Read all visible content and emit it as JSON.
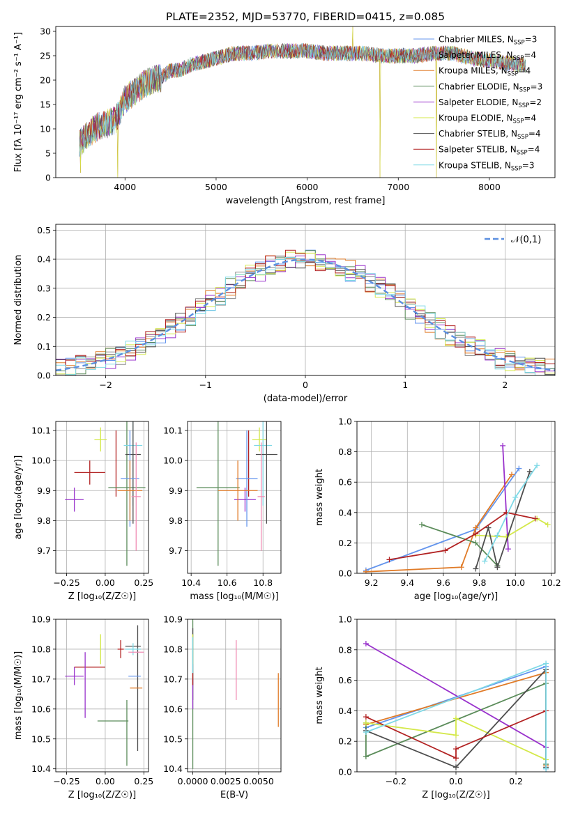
{
  "figure_title": "PLATE=2352, MJD=53770, FIBERID=0415, z=0.085",
  "models": [
    {
      "name": "Chabrier MILES",
      "nssp": "3",
      "color": "#6495ED"
    },
    {
      "name": "Salpeter MILES",
      "nssp": "4",
      "color": "#8C8C8C"
    },
    {
      "name": "Kroupa MILES",
      "nssp": "4",
      "color": "#E07B28"
    },
    {
      "name": "Chabrier ELODIE",
      "nssp": "3",
      "color": "#5B8C5A"
    },
    {
      "name": "Salpeter ELODIE",
      "nssp": "2",
      "color": "#9932CC"
    },
    {
      "name": "Kroupa ELODIE",
      "nssp": "4",
      "color": "#D4E84A"
    },
    {
      "name": "Chabrier STELIB",
      "nssp": "4",
      "color": "#4D4D4D"
    },
    {
      "name": "Salpeter STELIB",
      "nssp": "4",
      "color": "#B22222"
    },
    {
      "name": "Kroupa STELIB",
      "nssp": "3",
      "color": "#7FD9E6"
    }
  ],
  "pink_color": "#F08CB4",
  "chart_data": [
    {
      "type": "line",
      "id": "spectrum",
      "xlabel": "wavelength [Angstrom, rest frame]",
      "ylabel": "Flux [fλ 10⁻¹⁷ erg cm⁻² s⁻¹ A⁻¹]",
      "xlim": [
        3240,
        8720
      ],
      "ylim": [
        0,
        31
      ],
      "xticks": [
        4000,
        5000,
        6000,
        7000,
        8000
      ],
      "yticks": [
        0,
        5,
        10,
        15,
        20,
        25,
        30
      ],
      "grid": false,
      "legend_position": "upper-right",
      "continuum": {
        "x": [
          3500,
          3600,
          3700,
          3800,
          3900,
          4000,
          4100,
          4200,
          4300,
          4400,
          4500,
          4600,
          4700,
          4800,
          4900,
          5000,
          5200,
          5400,
          5600,
          5800,
          6000,
          6200,
          6400,
          6600,
          6800,
          7000,
          7200,
          7400,
          7600,
          7800,
          8000,
          8200,
          8400
        ],
        "y": [
          7,
          9,
          10.5,
          11,
          12,
          16,
          17.5,
          19,
          20,
          20.5,
          22,
          22,
          23,
          23.5,
          24,
          24.5,
          25.5,
          25.5,
          26,
          26,
          26,
          25.5,
          25.5,
          25.5,
          25,
          25,
          25,
          25.5,
          25.5,
          24.5,
          24,
          23.5,
          23
        ]
      },
      "spikes": [
        {
          "x": 3510,
          "y": 1
        },
        {
          "x": 3920,
          "y": 0
        },
        {
          "x": 6500,
          "y": 31
        },
        {
          "x": 6800,
          "y": 0
        },
        {
          "x": 7420,
          "y": 0
        }
      ]
    },
    {
      "type": "line",
      "id": "residual-histogram",
      "xlabel": "(data-model)/error",
      "ylabel": "Normed distribution",
      "xlim": [
        -2.5,
        2.5
      ],
      "ylim": [
        0,
        0.52
      ],
      "xticks": [
        -2,
        -1,
        0,
        1,
        2
      ],
      "xtick_labels": [
        "−2",
        "−1",
        "0",
        "1",
        "2"
      ],
      "yticks": [
        0,
        0.1,
        0.2,
        0.3,
        0.4,
        0.5
      ],
      "ytick_labels": [
        "0.0",
        "0.1",
        "0.2",
        "0.3",
        "0.4",
        "0.5"
      ],
      "grid": true,
      "legend_position": "upper-right",
      "reference_label": "𝒩(0,1)",
      "bin_width": 0.1
    },
    {
      "type": "scatter",
      "id": "age-vs-metallicity",
      "xlabel": "Z [log₁₀(Z/Z☉)]",
      "ylabel": "age  [log₁₀(age/yr)]",
      "xlim": [
        -0.32,
        0.28
      ],
      "ylim": [
        9.625,
        10.13
      ],
      "xticks": [
        -0.25,
        0,
        0.25
      ],
      "xtick_labels": [
        "−0.25",
        "0.00",
        "0.25"
      ],
      "yticks": [
        9.7,
        9.8,
        9.9,
        10.0,
        10.1
      ],
      "ytick_labels": [
        "9.7",
        "9.8",
        "9.9",
        "10.0",
        "10.1"
      ],
      "grid": true,
      "points": [
        {
          "model": "Kroupa ELODIE",
          "x": -0.03,
          "y": 10.07,
          "xerr": 0.04,
          "yerr": 0.04
        },
        {
          "model": "Salpeter STELIB",
          "x": -0.1,
          "y": 9.96,
          "xerr": 0.1,
          "yerr": 0.04
        },
        {
          "model": "Salpeter STELIB (2)",
          "x": 0.07,
          "y": 9.99,
          "xerr": 0,
          "yerr": 0.11
        },
        {
          "model": "Salpeter ELODIE",
          "x": -0.2,
          "y": 9.87,
          "xerr": 0.06,
          "yerr": 0.04
        },
        {
          "model": "Chabrier ELODIE",
          "x": 0.14,
          "y": 9.91,
          "xerr": 0.12,
          "yerr": 0.26
        },
        {
          "model": "Kroupa STELIB",
          "x": 0.18,
          "y": 10.05,
          "xerr": 0.06,
          "yerr": 0.2
        },
        {
          "model": "Chabrier STELIB",
          "x": 0.18,
          "y": 10.02,
          "xerr": 0.05,
          "yerr": 0.23
        },
        {
          "model": "Chabrier MILES",
          "x": 0.16,
          "y": 9.94,
          "xerr": 0.06,
          "yerr": 0.16
        },
        {
          "model": "Kroupa MILES",
          "x": 0.16,
          "y": 9.9,
          "xerr": 0.08,
          "yerr": 0.1
        },
        {
          "model": "pink",
          "x": 0.2,
          "y": 9.88,
          "xerr": 0.03,
          "yerr": 0.18
        }
      ]
    },
    {
      "type": "scatter",
      "id": "age-vs-mass",
      "xlabel": "mass [log₁₀(M/M☉)]",
      "ylabel": "",
      "xlim": [
        10.38,
        10.9
      ],
      "ylim": [
        9.625,
        10.13
      ],
      "xticks": [
        10.4,
        10.6,
        10.8
      ],
      "xtick_labels": [
        "10.4",
        "10.6",
        "10.8"
      ],
      "yticks": [
        9.7,
        9.8,
        9.9,
        10.0,
        10.1
      ],
      "ytick_labels": [
        "9.7",
        "9.8",
        "9.9",
        "10.0",
        "10.1"
      ],
      "grid": true,
      "points": [
        {
          "model": "Kroupa ELODIE",
          "x": 10.78,
          "y": 10.07,
          "xerr": 0.04,
          "yerr": 0.04
        },
        {
          "model": "Salpeter STELIB",
          "x": 10.72,
          "y": 9.99,
          "xerr": 0,
          "yerr": 0.11
        },
        {
          "model": "Salpeter ELODIE",
          "x": 10.7,
          "y": 9.87,
          "xerr": 0.06,
          "yerr": 0.04
        },
        {
          "model": "Chabrier ELODIE",
          "x": 10.55,
          "y": 9.91,
          "xerr": 0.12,
          "yerr": 0.26
        },
        {
          "model": "Kroupa STELIB",
          "x": 10.8,
          "y": 10.05,
          "xerr": 0.05,
          "yerr": 0.2
        },
        {
          "model": "Chabrier STELIB",
          "x": 10.82,
          "y": 10.02,
          "xerr": 0.06,
          "yerr": 0.23
        },
        {
          "model": "Chabrier MILES",
          "x": 10.71,
          "y": 9.94,
          "xerr": 0.06,
          "yerr": 0.16
        },
        {
          "model": "Kroupa MILES",
          "x": 10.66,
          "y": 9.9,
          "xerr": 0.11,
          "yerr": 0.1
        },
        {
          "model": "pink",
          "x": 10.79,
          "y": 9.88,
          "xerr": 0.02,
          "yerr": 0.18
        }
      ]
    },
    {
      "type": "line",
      "id": "mass-weight-vs-age",
      "xlabel": "age  [log₁₀(age/yr)]",
      "ylabel": "mass weight",
      "xlim": [
        9.12,
        10.22
      ],
      "ylim": [
        0,
        1
      ],
      "xticks": [
        9.2,
        9.4,
        9.6,
        9.8,
        10.0,
        10.2
      ],
      "xtick_labels": [
        "9.2",
        "9.4",
        "9.6",
        "9.8",
        "10.0",
        "10.2"
      ],
      "yticks": [
        0,
        0.2,
        0.4,
        0.6,
        0.8,
        1.0
      ],
      "ytick_labels": [
        "0.0",
        "0.2",
        "0.4",
        "0.6",
        "0.8",
        "1.0"
      ],
      "grid": true,
      "series": [
        {
          "model": "Chabrier MILES",
          "x": [
            9.17,
            9.78,
            10.02
          ],
          "y": [
            0.02,
            0.29,
            0.69
          ]
        },
        {
          "model": "Kroupa MILES",
          "x": [
            9.17,
            9.7,
            9.78,
            9.98
          ],
          "y": [
            0.01,
            0.04,
            0.3,
            0.65
          ]
        },
        {
          "model": "Chabrier ELODIE",
          "x": [
            9.48,
            9.78,
            9.9
          ],
          "y": [
            0.32,
            0.2,
            0.05
          ]
        },
        {
          "model": "Salpeter ELODIE",
          "x": [
            9.93,
            9.96
          ],
          "y": [
            0.84,
            0.16
          ]
        },
        {
          "model": "Kroupa ELODIE",
          "x": [
            9.78,
            9.95,
            10.12,
            10.18
          ],
          "y": [
            0.25,
            0.24,
            0.36,
            0.32
          ]
        },
        {
          "model": "Chabrier STELIB",
          "x": [
            9.78,
            9.85,
            9.9,
            10.08
          ],
          "y": [
            0.03,
            0.3,
            0.04,
            0.67
          ]
        },
        {
          "model": "Salpeter STELIB",
          "x": [
            9.3,
            9.61,
            9.78,
            9.95,
            10.11
          ],
          "y": [
            0.09,
            0.15,
            0.26,
            0.4,
            0.36
          ]
        },
        {
          "model": "Kroupa STELIB",
          "x": [
            9.83,
            9.9,
            10.0,
            10.12
          ],
          "y": [
            0.08,
            0.25,
            0.5,
            0.71
          ]
        }
      ]
    },
    {
      "type": "scatter",
      "id": "mass-vs-metallicity",
      "xlabel": "Z [log₁₀(Z/Z☉)]",
      "ylabel": "mass [log₁₀(M/M☉)]",
      "xlim": [
        -0.32,
        0.28
      ],
      "ylim": [
        10.39,
        10.9
      ],
      "xticks": [
        -0.25,
        0,
        0.25
      ],
      "xtick_labels": [
        "−0.25",
        "0.00",
        "0.25"
      ],
      "yticks": [
        10.4,
        10.5,
        10.6,
        10.7,
        10.8,
        10.9
      ],
      "ytick_labels": [
        "10.4",
        "10.5",
        "10.6",
        "10.7",
        "10.8",
        "10.9"
      ],
      "grid": true,
      "points": [
        {
          "model": "Kroupa ELODIE",
          "x": -0.03,
          "y": 10.8,
          "xerr": 0,
          "yerr": 0.05
        },
        {
          "model": "Salpeter STELIB",
          "x": -0.1,
          "y": 10.74,
          "xerr": 0.1,
          "yerr": 0
        },
        {
          "model": "Salpeter STELIB (2)",
          "x": 0.1,
          "y": 10.8,
          "xerr": 0.02,
          "yerr": 0.03
        },
        {
          "model": "Salpeter ELODIE",
          "x": -0.2,
          "y": 10.71,
          "xerr": 0.06,
          "yerr": 0.03
        },
        {
          "model": "Salpeter ELODIE (2)",
          "x": -0.13,
          "y": 10.68,
          "xerr": 0,
          "yerr": 0.11
        },
        {
          "model": "Chabrier ELODIE",
          "x": 0.05,
          "y": 10.56,
          "xerr": 0.1,
          "yerr": 0
        },
        {
          "model": "Chabrier ELODIE (2)",
          "x": 0.14,
          "y": 10.52,
          "xerr": 0,
          "yerr": 0.11
        },
        {
          "model": "Chabrier STELIB",
          "x": 0.18,
          "y": 10.81,
          "xerr": 0.05,
          "yerr": 0
        },
        {
          "model": "Chabrier STELIB (2)",
          "x": 0.21,
          "y": 10.67,
          "xerr": 0,
          "yerr": 0.21
        },
        {
          "model": "Kroupa STELIB",
          "x": 0.18,
          "y": 10.8,
          "xerr": 0.05,
          "yerr": 0.02
        },
        {
          "model": "Chabrier MILES",
          "x": 0.19,
          "y": 10.71,
          "xerr": 0.04,
          "yerr": 0
        },
        {
          "model": "Kroupa MILES",
          "x": 0.2,
          "y": 10.67,
          "xerr": 0.04,
          "yerr": 0
        },
        {
          "model": "pink",
          "x": 0.2,
          "y": 10.79,
          "xerr": 0.05,
          "yerr": 0
        }
      ]
    },
    {
      "type": "scatter",
      "id": "mass-vs-extinction",
      "xlabel": "E(B-V)",
      "ylabel": "",
      "xlim": [
        -0.0004,
        0.0067
      ],
      "ylim": [
        10.39,
        10.9
      ],
      "xticks": [
        0,
        0.0025,
        0.005
      ],
      "xtick_labels": [
        "0.0000",
        "0.0025",
        "0.0050"
      ],
      "yticks": [
        10.4,
        10.5,
        10.6,
        10.7,
        10.8,
        10.9
      ],
      "ytick_labels": [
        "10.4",
        "10.5",
        "10.6",
        "10.7",
        "10.8",
        "10.9"
      ],
      "grid": true,
      "points": [
        {
          "model": "Chabrier ELODIE",
          "x": 0,
          "y": 10.65,
          "xerr": 0,
          "yerr": 0.25
        },
        {
          "model": "Chabrier STELIB",
          "x": 0,
          "y": 10.75,
          "xerr": 0,
          "yerr": 0.12
        },
        {
          "model": "Kroupa ELODIE",
          "x": 0,
          "y": 10.8,
          "xerr": 0,
          "yerr": 0.05
        },
        {
          "model": "Kroupa STELIB",
          "x": 0,
          "y": 10.78,
          "xerr": 0,
          "yerr": 0.06
        },
        {
          "model": "Salpeter ELODIE",
          "x": 0,
          "y": 10.65,
          "xerr": 0,
          "yerr": 0.05
        },
        {
          "model": "Salpeter STELIB",
          "x": 0,
          "y": 10.7,
          "xerr": 0,
          "yerr": 0.02
        },
        {
          "model": "pink",
          "x": 0.0033,
          "y": 10.73,
          "xerr": 0,
          "yerr": 0.1
        },
        {
          "model": "Kroupa MILES",
          "x": 0.0065,
          "y": 10.63,
          "xerr": 0,
          "yerr": 0.09
        }
      ]
    },
    {
      "type": "line",
      "id": "mass-weight-vs-metallicity",
      "xlabel": "Z [log₁₀(Z/Z☉)]",
      "ylabel": "mass weight",
      "xlim": [
        -0.33,
        0.33
      ],
      "ylim": [
        0,
        1
      ],
      "xticks": [
        -0.2,
        0,
        0.2
      ],
      "xtick_labels": [
        "−0.2",
        "0.0",
        "0.2"
      ],
      "yticks": [
        0,
        0.2,
        0.4,
        0.6,
        0.8,
        1.0
      ],
      "ytick_labels": [
        "0.0",
        "0.2",
        "0.4",
        "0.6",
        "0.8",
        "1.0"
      ],
      "grid": true,
      "series": [
        {
          "model": "Chabrier MILES",
          "x": [
            -0.3,
            0.3,
            0.3
          ],
          "y": [
            0.29,
            0.69,
            0.02
          ]
        },
        {
          "model": "Kroupa MILES",
          "x": [
            -0.3,
            0.3,
            0.3
          ],
          "y": [
            0.31,
            0.65,
            0.04
          ]
        },
        {
          "model": "Chabrier ELODIE",
          "x": [
            -0.3,
            -0.3,
            0.3,
            0.3
          ],
          "y": [
            0.32,
            0.1,
            0.58,
            0.05
          ]
        },
        {
          "model": "Salpeter ELODIE",
          "x": [
            -0.3,
            0.3
          ],
          "y": [
            0.84,
            0.16
          ]
        },
        {
          "model": "Kroupa ELODIE",
          "x": [
            -0.3,
            0.0,
            0.0,
            0.3
          ],
          "y": [
            0.32,
            0.24,
            0.35,
            0.08
          ]
        },
        {
          "model": "Chabrier STELIB",
          "x": [
            -0.3,
            0.0,
            0.3,
            0.3
          ],
          "y": [
            0.27,
            0.03,
            0.67,
            0.03
          ]
        },
        {
          "model": "Salpeter STELIB",
          "x": [
            -0.3,
            0.0,
            0.0,
            0.3
          ],
          "y": [
            0.36,
            0.09,
            0.15,
            0.4
          ]
        },
        {
          "model": "Kroupa STELIB",
          "x": [
            -0.3,
            0.3,
            0.3
          ],
          "y": [
            0.26,
            0.71,
            0.02
          ]
        }
      ]
    }
  ]
}
